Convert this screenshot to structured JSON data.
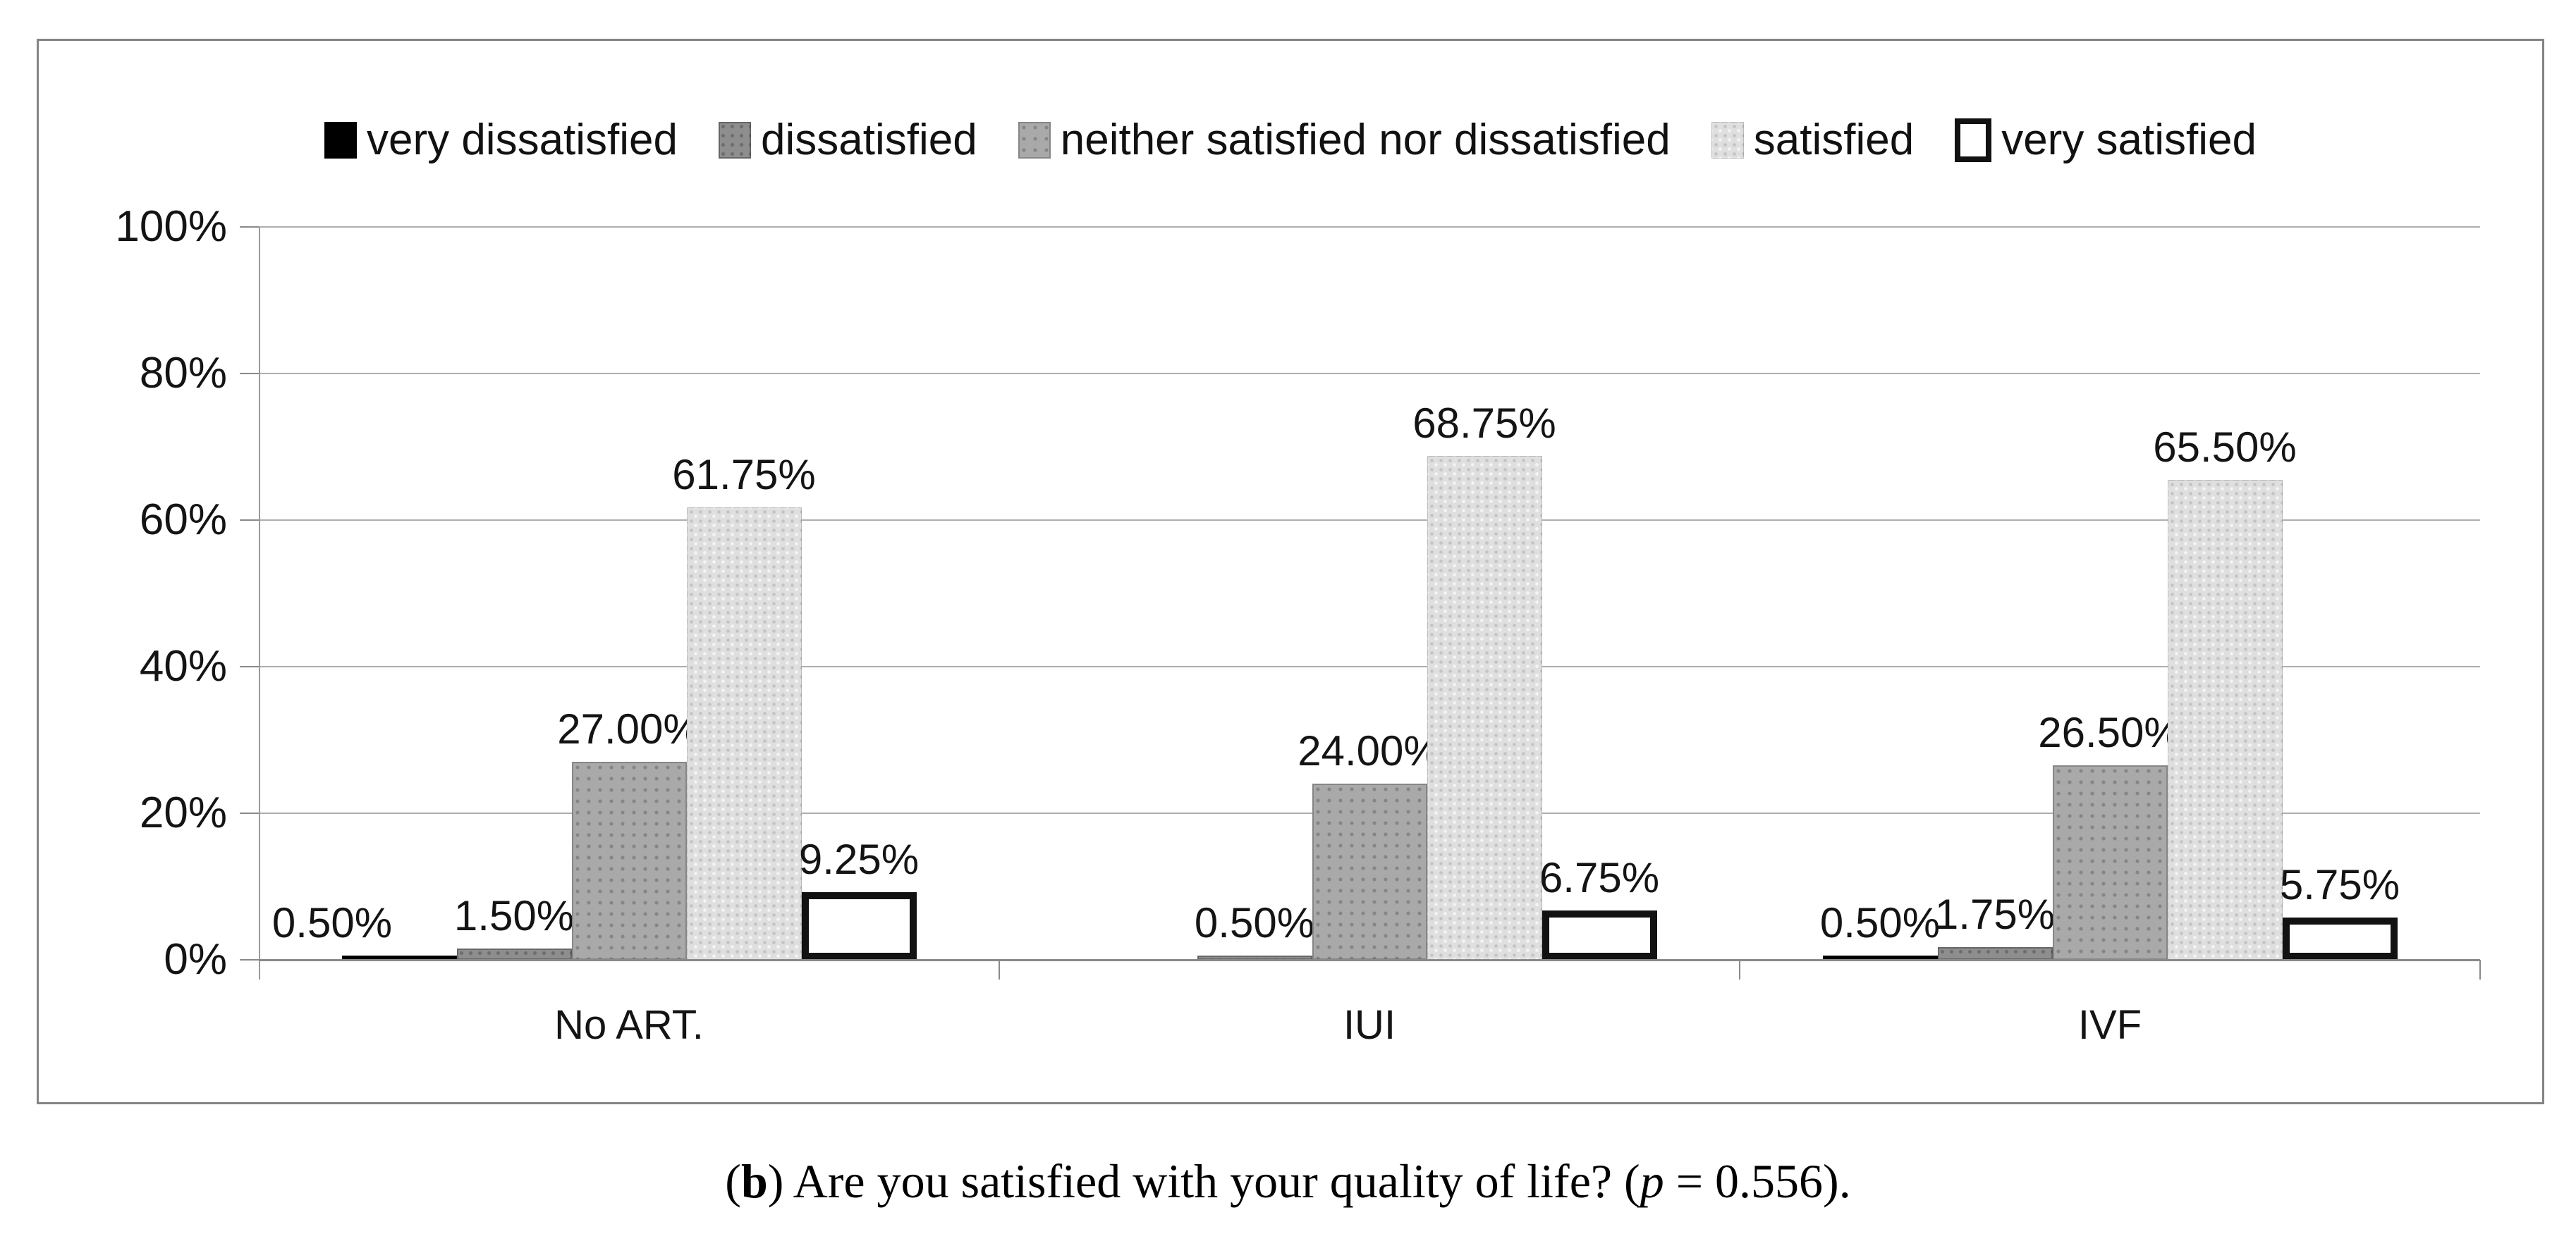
{
  "caption": {
    "open_paren": "(",
    "bold_label": "b",
    "text_after_label": ") Are you satisfied with your quality of life? (",
    "italic_var": "p",
    "closing": " = 0.556)."
  },
  "chart_data": {
    "type": "bar",
    "title": "",
    "categories": [
      "No ART.",
      "IUI",
      "IVF"
    ],
    "series": [
      {
        "name": "very dissatisfied",
        "color": "#000000",
        "values": [
          0.5,
          0,
          0.5
        ],
        "labels": [
          "0.50%",
          "",
          "0.50%"
        ]
      },
      {
        "name": "dissatisfied",
        "color": "#8e8e8e",
        "values": [
          1.5,
          0.5,
          1.75
        ],
        "labels": [
          "1.50%",
          "0.50%",
          "1.75%"
        ]
      },
      {
        "name": "neither satisfied nor dissatisfied",
        "color": "#a9a9a9",
        "values": [
          27.0,
          24.0,
          26.5
        ],
        "labels": [
          "27.00%",
          "24.00%",
          "26.50%"
        ]
      },
      {
        "name": "satisfied",
        "color": "#dedede",
        "values": [
          61.75,
          68.75,
          65.5
        ],
        "labels": [
          "61.75%",
          "68.75%",
          "65.50%"
        ]
      },
      {
        "name": "very satisfied",
        "color": "#ffffff",
        "values": [
          9.25,
          6.75,
          5.75
        ],
        "labels": [
          "9.25%",
          "6.75%",
          "5.75%"
        ]
      }
    ],
    "y_axis": {
      "tick_labels": [
        "0%",
        "20%",
        "40%",
        "60%",
        "80%",
        "100%"
      ],
      "min": 0,
      "max": 100,
      "step": 20
    },
    "legend_position": "top",
    "grid": true
  }
}
